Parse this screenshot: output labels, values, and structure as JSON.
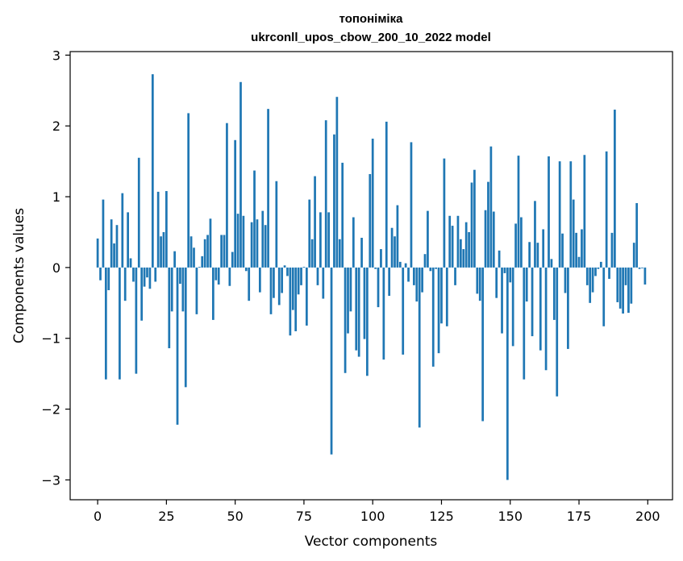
{
  "chart_data": {
    "type": "bar",
    "title_line1": "топоніміка",
    "title_line2": "ukrconll_upos_cbow_200_10_2022 model",
    "xlabel": "Vector components",
    "ylabel": "Components values",
    "xlim": [
      -10,
      209
    ],
    "ylim": [
      -3.28,
      3.05
    ],
    "xticks": [
      0,
      25,
      50,
      75,
      100,
      125,
      150,
      175,
      200
    ],
    "xtick_labels": [
      "0",
      "25",
      "50",
      "75",
      "100",
      "125",
      "150",
      "175",
      "200"
    ],
    "yticks": [
      -3,
      -2,
      -1,
      0,
      1,
      2,
      3
    ],
    "ytick_labels": [
      "−3",
      "−2",
      "−1",
      "0",
      "1",
      "2",
      "3"
    ],
    "grid": false,
    "bar_color": "#1f77b4",
    "x": [
      0,
      1,
      2,
      3,
      4,
      5,
      6,
      7,
      8,
      9,
      10,
      11,
      12,
      13,
      14,
      15,
      16,
      17,
      18,
      19,
      20,
      21,
      22,
      23,
      24,
      25,
      26,
      27,
      28,
      29,
      30,
      31,
      32,
      33,
      34,
      35,
      36,
      37,
      38,
      39,
      40,
      41,
      42,
      43,
      44,
      45,
      46,
      47,
      48,
      49,
      50,
      51,
      52,
      53,
      54,
      55,
      56,
      57,
      58,
      59,
      60,
      61,
      62,
      63,
      64,
      65,
      66,
      67,
      68,
      69,
      70,
      71,
      72,
      73,
      74,
      75,
      76,
      77,
      78,
      79,
      80,
      81,
      82,
      83,
      84,
      85,
      86,
      87,
      88,
      89,
      90,
      91,
      92,
      93,
      94,
      95,
      96,
      97,
      98,
      99,
      100,
      101,
      102,
      103,
      104,
      105,
      106,
      107,
      108,
      109,
      110,
      111,
      112,
      113,
      114,
      115,
      116,
      117,
      118,
      119,
      120,
      121,
      122,
      123,
      124,
      125,
      126,
      127,
      128,
      129,
      130,
      131,
      132,
      133,
      134,
      135,
      136,
      137,
      138,
      139,
      140,
      141,
      142,
      143,
      144,
      145,
      146,
      147,
      148,
      149,
      150,
      151,
      152,
      153,
      154,
      155,
      156,
      157,
      158,
      159,
      160,
      161,
      162,
      163,
      164,
      165,
      166,
      167,
      168,
      169,
      170,
      171,
      172,
      173,
      174,
      175,
      176,
      177,
      178,
      179,
      180,
      181,
      182,
      183,
      184,
      185,
      186,
      187,
      188,
      189,
      190,
      191,
      192,
      193,
      194,
      195,
      196,
      197,
      198,
      199
    ],
    "values": [
      0.41,
      -0.18,
      0.96,
      -1.58,
      -0.32,
      0.68,
      0.34,
      0.6,
      -1.58,
      1.05,
      -0.47,
      0.78,
      0.13,
      -0.2,
      -1.5,
      1.55,
      -0.75,
      -0.27,
      -0.14,
      -0.3,
      2.73,
      -0.2,
      1.07,
      0.44,
      0.5,
      1.08,
      -1.14,
      -0.62,
      0.23,
      -2.22,
      -0.23,
      -0.62,
      -1.69,
      2.18,
      0.44,
      0.28,
      -0.66,
      0.01,
      0.16,
      0.4,
      0.46,
      0.69,
      -0.74,
      -0.18,
      -0.24,
      0.46,
      0.46,
      2.04,
      -0.26,
      0.22,
      1.8,
      0.76,
      2.62,
      0.73,
      -0.05,
      -0.47,
      0.64,
      1.37,
      0.68,
      -0.35,
      0.8,
      0.6,
      2.24,
      -0.66,
      -0.43,
      1.22,
      -0.53,
      -0.36,
      0.03,
      -0.12,
      -0.96,
      -0.6,
      -0.9,
      -0.38,
      -0.25,
      0.01,
      -0.82,
      0.96,
      0.4,
      1.29,
      -0.25,
      0.78,
      -0.44,
      2.08,
      0.78,
      -2.64,
      1.88,
      2.41,
      0.4,
      1.48,
      -1.49,
      -0.93,
      -0.62,
      0.71,
      -1.17,
      -1.26,
      0.42,
      -1.01,
      -1.53,
      1.32,
      1.82,
      -0.02,
      -0.56,
      0.26,
      -1.3,
      2.06,
      -0.4,
      0.56,
      0.44,
      0.88,
      0.08,
      -1.23,
      0.06,
      -0.2,
      1.77,
      -0.25,
      -0.48,
      -2.26,
      -0.35,
      0.19,
      0.8,
      -0.05,
      -1.4,
      -0.02,
      -1.21,
      -0.79,
      1.54,
      -0.83,
      0.73,
      0.59,
      -0.25,
      0.73,
      0.4,
      0.26,
      0.64,
      0.5,
      1.2,
      1.38,
      -0.37,
      -0.47,
      -2.17,
      0.81,
      1.21,
      1.71,
      0.79,
      -0.43,
      0.24,
      -0.93,
      -0.08,
      -3.0,
      -0.21,
      -1.11,
      0.62,
      1.58,
      0.71,
      -1.58,
      -0.48,
      0.36,
      -0.97,
      0.94,
      0.35,
      -1.17,
      0.54,
      -1.45,
      1.57,
      0.12,
      -0.74,
      -1.82,
      1.5,
      0.48,
      -0.36,
      -1.15,
      1.5,
      0.96,
      0.49,
      0.15,
      0.54,
      1.59,
      -0.25,
      -0.5,
      -0.35,
      -0.12,
      -0.02,
      0.08,
      -0.83,
      1.64,
      -0.16,
      0.49,
      2.23,
      -0.49,
      -0.58,
      -0.65,
      -0.25,
      -0.64,
      -0.51,
      0.35,
      0.91,
      -0.02,
      -0.01,
      -0.24
    ]
  }
}
